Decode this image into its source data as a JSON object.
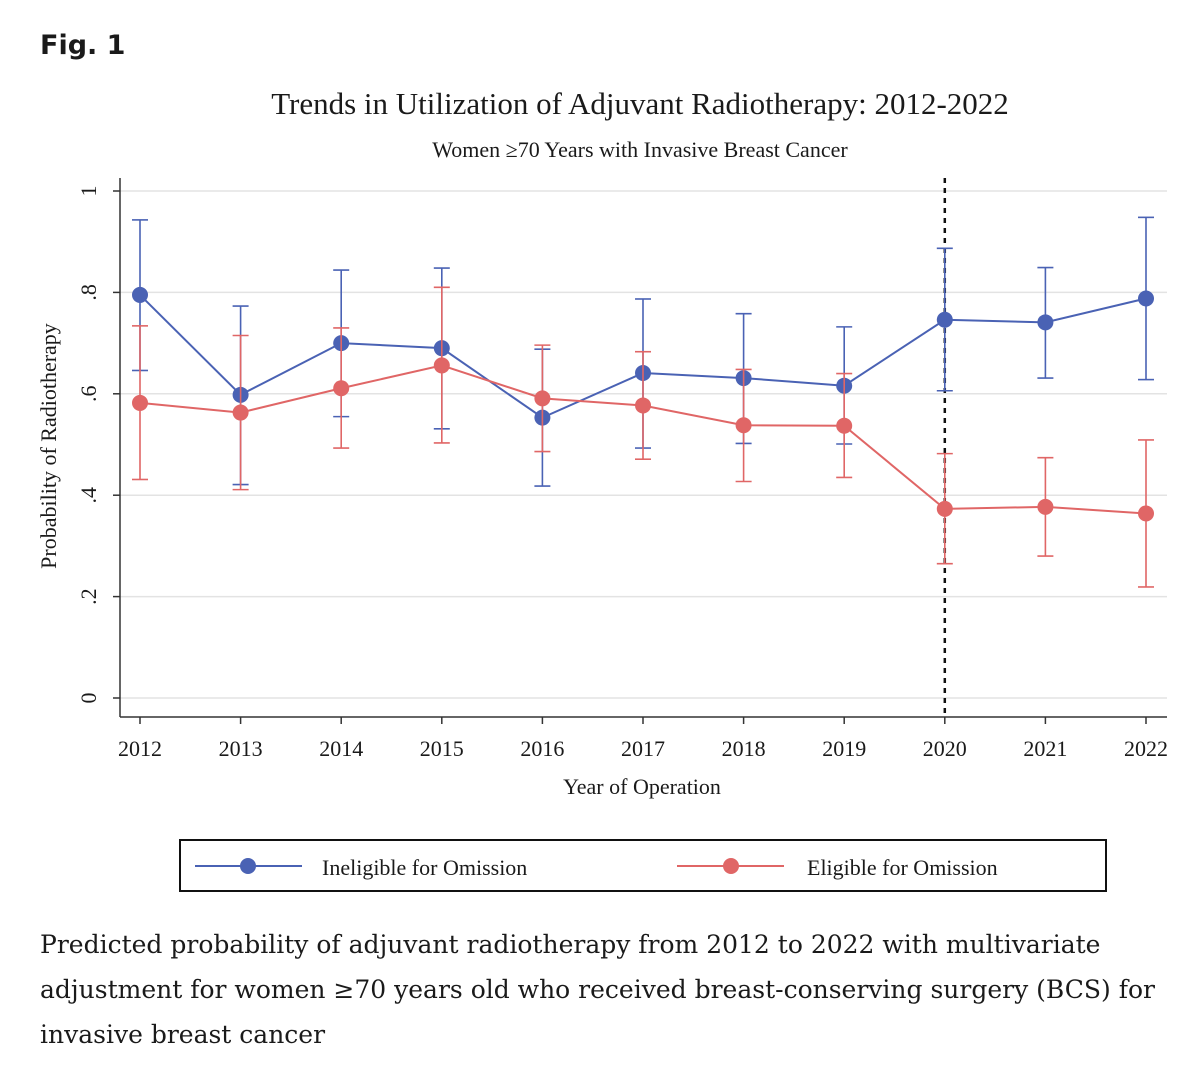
{
  "figure_label": "Fig. 1",
  "caption": "Predicted probability of adjuvant radiotherapy from 2012 to 2022 with multivariate adjustment for women ≥70 years old who received breast-conserving surgery (BCS) for invasive breast cancer",
  "chart_data": {
    "type": "line",
    "title": "Trends in Utilization of Adjuvant Radiotherapy: 2012-2022",
    "subtitle": "Women ≥70 Years with Invasive Breast Cancer",
    "xlabel": "Year of Operation",
    "ylabel": "Probability of Radiotherapy",
    "ylim": [
      0,
      1
    ],
    "yticks": [
      0,
      0.2,
      0.4,
      0.6,
      0.8,
      1
    ],
    "ytick_labels": [
      "0",
      ".2",
      ".4",
      ".6",
      ".8",
      "1"
    ],
    "categories": [
      "2012",
      "2013",
      "2014",
      "2015",
      "2016",
      "2017",
      "2018",
      "2019",
      "2020",
      "2021",
      "2022"
    ],
    "reference_line_x": "2020",
    "grid": true,
    "legend_position": "bottom",
    "series": [
      {
        "name": "Ineligible for Omission",
        "color": "#4a62b4",
        "values": [
          0.795,
          0.598,
          0.7,
          0.69,
          0.553,
          0.641,
          0.631,
          0.616,
          0.746,
          0.741,
          0.788
        ],
        "lower": [
          0.646,
          0.421,
          0.555,
          0.531,
          0.418,
          0.493,
          0.502,
          0.501,
          0.606,
          0.631,
          0.628
        ],
        "upper": [
          0.943,
          0.773,
          0.844,
          0.848,
          0.688,
          0.787,
          0.758,
          0.732,
          0.887,
          0.849,
          0.948
        ]
      },
      {
        "name": "Eligible for Omission",
        "color": "#e06666",
        "values": [
          0.582,
          0.563,
          0.611,
          0.656,
          0.591,
          0.577,
          0.538,
          0.537,
          0.373,
          0.377,
          0.364
        ],
        "lower": [
          0.431,
          0.411,
          0.493,
          0.503,
          0.486,
          0.471,
          0.427,
          0.435,
          0.265,
          0.28,
          0.219
        ],
        "upper": [
          0.734,
          0.715,
          0.73,
          0.81,
          0.696,
          0.683,
          0.648,
          0.64,
          0.482,
          0.474,
          0.509
        ]
      }
    ]
  }
}
